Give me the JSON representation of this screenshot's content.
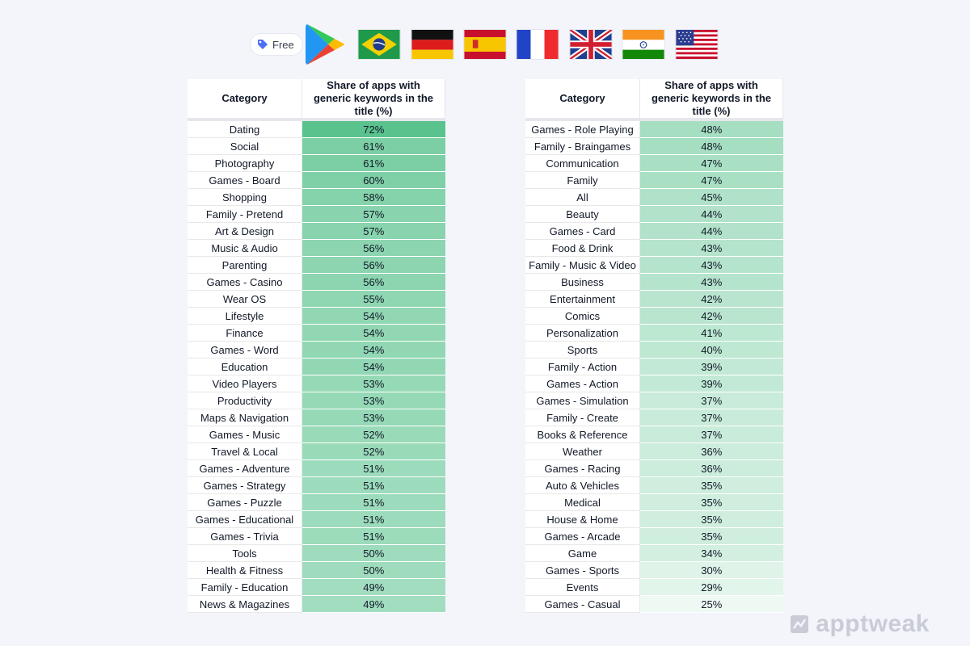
{
  "badge": {
    "label": "Free",
    "icon": "tag-icon",
    "color": "#4f6ef7"
  },
  "store_icon": "google-play-logo",
  "flags": [
    "brazil-flag",
    "germany-flag",
    "spain-flag",
    "france-flag",
    "uk-flag",
    "india-flag",
    "usa-flag"
  ],
  "table": {
    "header_category": "Category",
    "header_share": "Share of apps with generic keywords in the title (%)"
  },
  "chart_data": {
    "type": "table",
    "columns": [
      "Category",
      "Share of apps with generic keywords in the title (%)"
    ],
    "value_color": "#3fb97b",
    "left_rows": [
      {
        "category": "Dating",
        "value": 72
      },
      {
        "category": "Social",
        "value": 61
      },
      {
        "category": "Photography",
        "value": 61
      },
      {
        "category": "Games - Board",
        "value": 60
      },
      {
        "category": "Shopping",
        "value": 58
      },
      {
        "category": "Family - Pretend",
        "value": 57
      },
      {
        "category": "Art & Design",
        "value": 57
      },
      {
        "category": "Music & Audio",
        "value": 56
      },
      {
        "category": "Parenting",
        "value": 56
      },
      {
        "category": "Games - Casino",
        "value": 56
      },
      {
        "category": "Wear OS",
        "value": 55
      },
      {
        "category": "Lifestyle",
        "value": 54
      },
      {
        "category": "Finance",
        "value": 54
      },
      {
        "category": "Games - Word",
        "value": 54
      },
      {
        "category": "Education",
        "value": 54
      },
      {
        "category": "Video Players",
        "value": 53
      },
      {
        "category": "Productivity",
        "value": 53
      },
      {
        "category": "Maps & Navigation",
        "value": 53
      },
      {
        "category": "Games - Music",
        "value": 52
      },
      {
        "category": "Travel & Local",
        "value": 52
      },
      {
        "category": "Games - Adventure",
        "value": 51
      },
      {
        "category": "Games - Strategy",
        "value": 51
      },
      {
        "category": "Games - Puzzle",
        "value": 51
      },
      {
        "category": "Games - Educational",
        "value": 51
      },
      {
        "category": "Games - Trivia",
        "value": 51
      },
      {
        "category": "Tools",
        "value": 50
      },
      {
        "category": "Health & Fitness",
        "value": 50
      },
      {
        "category": "Family - Education",
        "value": 49
      },
      {
        "category": "News & Magazines",
        "value": 49
      }
    ],
    "right_rows": [
      {
        "category": "Games - Role Playing",
        "value": 48
      },
      {
        "category": "Family - Braingames",
        "value": 48
      },
      {
        "category": "Communication",
        "value": 47
      },
      {
        "category": "Family",
        "value": 47
      },
      {
        "category": "All",
        "value": 45
      },
      {
        "category": "Beauty",
        "value": 44
      },
      {
        "category": "Games - Card",
        "value": 44
      },
      {
        "category": "Food & Drink",
        "value": 43
      },
      {
        "category": "Family - Music & Video",
        "value": 43
      },
      {
        "category": "Business",
        "value": 43
      },
      {
        "category": "Entertainment",
        "value": 42
      },
      {
        "category": "Comics",
        "value": 42
      },
      {
        "category": "Personalization",
        "value": 41
      },
      {
        "category": "Sports",
        "value": 40
      },
      {
        "category": "Family - Action",
        "value": 39
      },
      {
        "category": "Games - Action",
        "value": 39
      },
      {
        "category": "Games - Simulation",
        "value": 37
      },
      {
        "category": "Family - Create",
        "value": 37
      },
      {
        "category": "Books & Reference",
        "value": 37
      },
      {
        "category": "Weather",
        "value": 36
      },
      {
        "category": "Games - Racing",
        "value": 36
      },
      {
        "category": "Auto & Vehicles",
        "value": 35
      },
      {
        "category": "Medical",
        "value": 35
      },
      {
        "category": "House & Home",
        "value": 35
      },
      {
        "category": "Games - Arcade",
        "value": 35
      },
      {
        "category": "Game",
        "value": 34
      },
      {
        "category": "Games - Sports",
        "value": 30
      },
      {
        "category": "Events",
        "value": 29
      },
      {
        "category": "Games - Casual",
        "value": 25
      }
    ]
  },
  "watermark": {
    "text": "apptweak",
    "icon": "apptweak-logo-icon"
  }
}
